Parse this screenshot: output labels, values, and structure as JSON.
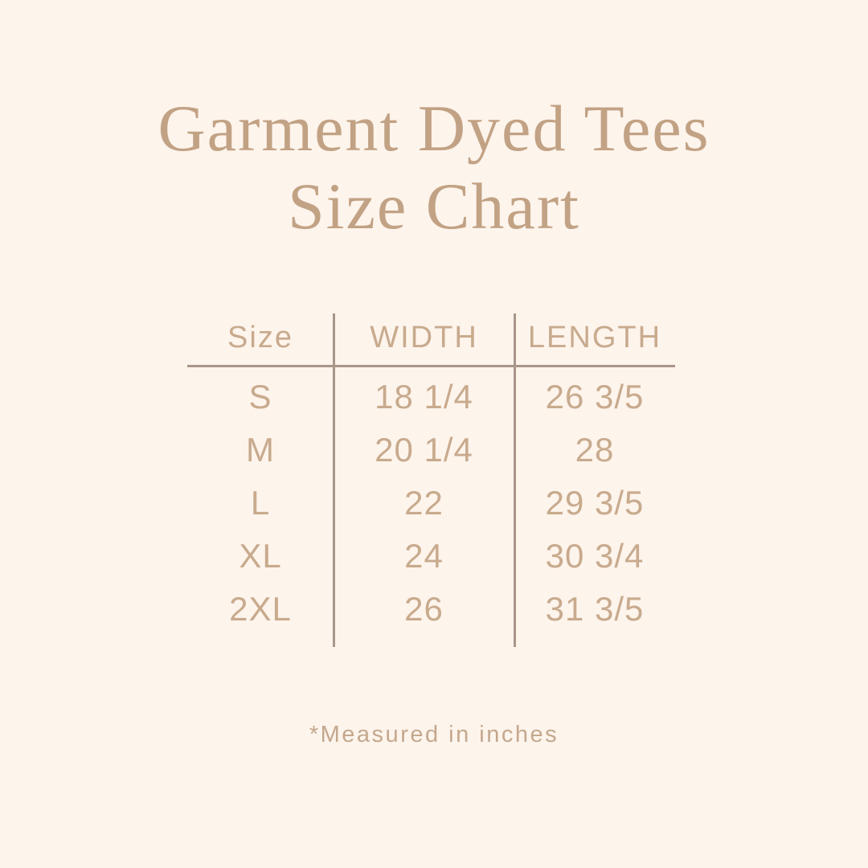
{
  "theme": {
    "background": "#fdf4ec",
    "title_color": "#c2a284",
    "table_text_color": "#c8aa8d",
    "line_color": "#a89689"
  },
  "title": {
    "line1": "Garment Dyed Tees",
    "line2": "Size Chart"
  },
  "table": {
    "headers": [
      "Size",
      "WIDTH",
      "LENGTH"
    ],
    "rows": [
      {
        "size": "S",
        "width": "18 1/4",
        "length": "26 3/5"
      },
      {
        "size": "M",
        "width": "20 1/4",
        "length": "28"
      },
      {
        "size": "L",
        "width": "22",
        "length": "29 3/5"
      },
      {
        "size": "XL",
        "width": "24",
        "length": "30 3/4"
      },
      {
        "size": "2XL",
        "width": "26",
        "length": "31 3/5"
      }
    ]
  },
  "footnote": {
    "text": "*Measured in inches"
  }
}
